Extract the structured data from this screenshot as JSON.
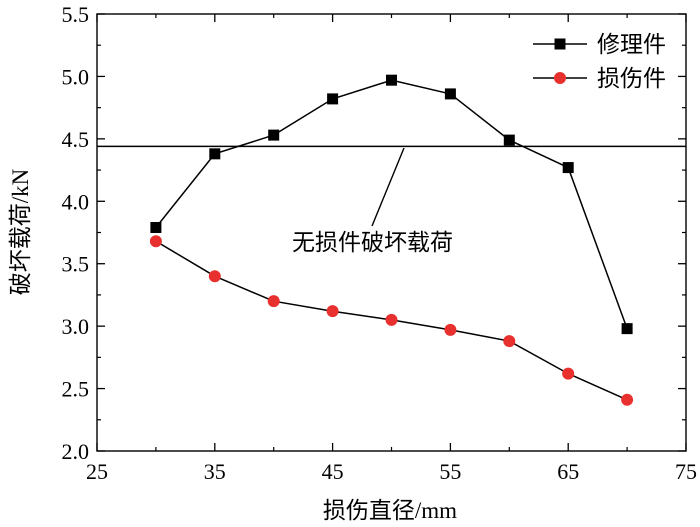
{
  "chart_data": {
    "type": "line",
    "xlabel": "损伤直径/mm",
    "ylabel": "破坏载荷/kN",
    "xlim": [
      25,
      75
    ],
    "ylim": [
      2.0,
      5.5
    ],
    "xticks": [
      25,
      35,
      45,
      55,
      65,
      75
    ],
    "yticks": [
      2.0,
      2.5,
      3.0,
      3.5,
      4.0,
      4.5,
      5.0,
      5.5
    ],
    "x": [
      30,
      35,
      40,
      45,
      50,
      55,
      60,
      65,
      70
    ],
    "grid": false,
    "legend_position": "top-right",
    "series": [
      {
        "name": "修理件",
        "marker": "square",
        "color": "#000000",
        "values": [
          3.79,
          4.38,
          4.53,
          4.82,
          4.97,
          4.86,
          4.49,
          4.27,
          2.98
        ]
      },
      {
        "name": "损伤件",
        "marker": "circle",
        "color": "#e8312f",
        "values": [
          3.68,
          3.4,
          3.2,
          3.12,
          3.05,
          2.97,
          2.88,
          2.62,
          2.41
        ]
      }
    ],
    "reference_line": {
      "y": 4.44,
      "label": "无损件破坏载荷"
    }
  }
}
